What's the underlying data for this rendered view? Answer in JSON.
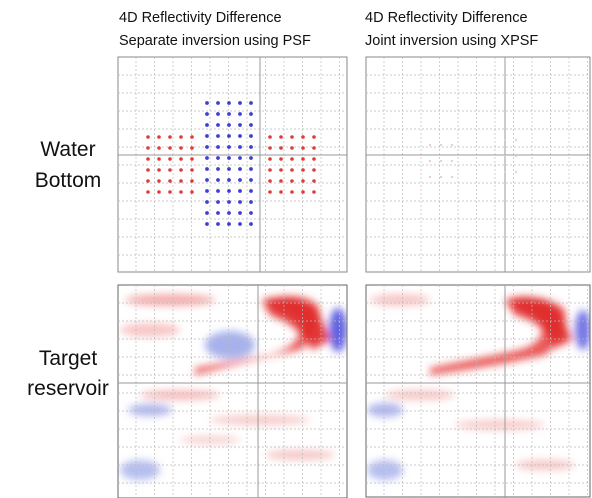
{
  "columns": [
    {
      "title": [
        "4D Reflectivity Difference",
        "Separate inversion using PSF"
      ]
    },
    {
      "title": [
        "4D Reflectivity Difference",
        "Joint inversion using XPSF"
      ]
    }
  ],
  "rows": [
    {
      "label": [
        "Water",
        "Bottom"
      ]
    },
    {
      "label": [
        "Target",
        "reservoir"
      ]
    }
  ]
}
